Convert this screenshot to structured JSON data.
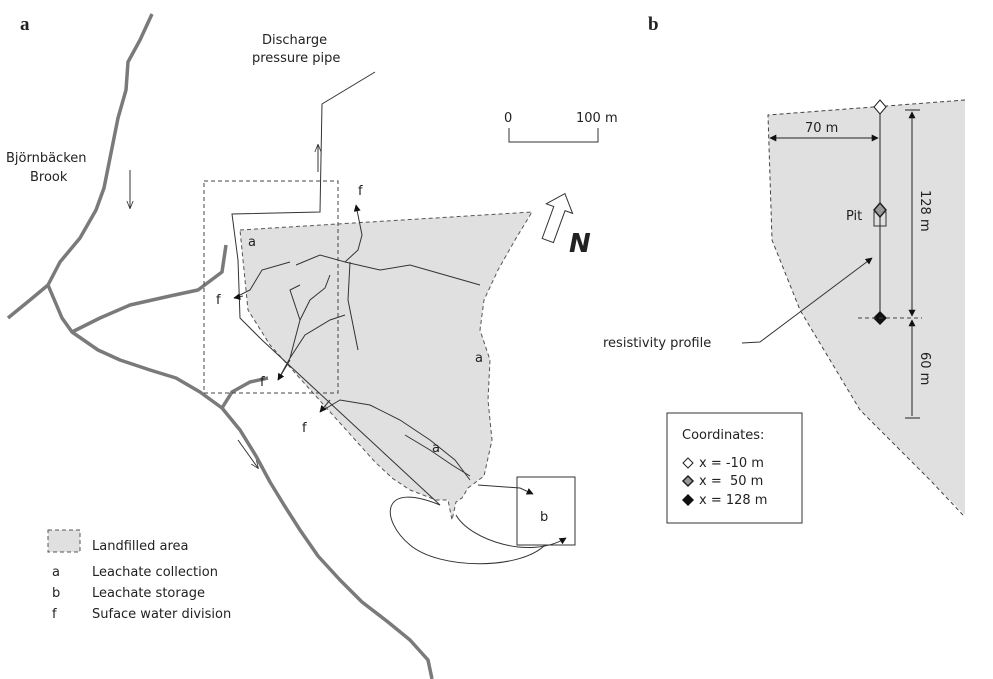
{
  "panel_labels": [
    "a",
    "b"
  ],
  "map": {
    "pipe_label": [
      "Discharge",
      "pressure pipe"
    ],
    "brook_label": [
      "Björnbäcken",
      "Brook"
    ],
    "scale": [
      "0",
      "100 m"
    ],
    "north": "N",
    "collection_labels": [
      "a",
      "a",
      "a"
    ],
    "division_labels": [
      "f",
      "f",
      "f",
      "f"
    ],
    "storage_label": "b"
  },
  "legend": {
    "area": "Landfilled area",
    "items": [
      {
        "key": "a",
        "text": "Leachate collection"
      },
      {
        "key": "b",
        "text": "Leachate storage"
      },
      {
        "key": "f",
        "text": "Suface water division"
      }
    ]
  },
  "profile": {
    "offset": "70 m",
    "length": "128 m",
    "extension": "60 m",
    "pit": "Pit",
    "profile_label": "resistivity profile",
    "coordinates": {
      "title": "Coordinates:",
      "rows": [
        "x = -10 m",
        "x =  50 m",
        "x = 128 m"
      ]
    }
  }
}
